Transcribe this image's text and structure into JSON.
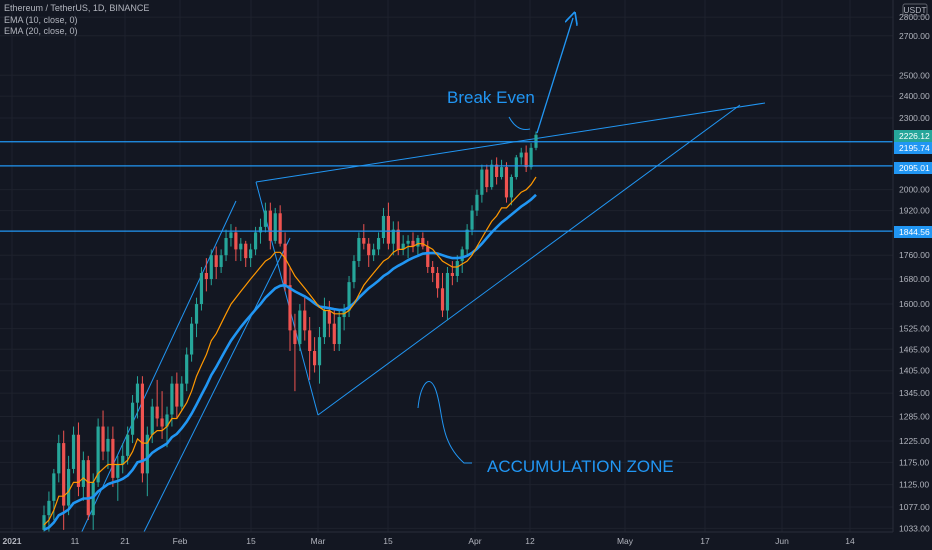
{
  "header": {
    "symbol_line": "Ethereum / TetherUS, 1D, BINANCE",
    "indicators": [
      "EMA (10, close, 0)",
      "EMA (20, close, 0)"
    ]
  },
  "price_axis": {
    "currency": "USDT",
    "ticks": [
      "2800.00",
      "2700.00",
      "2500.00",
      "2400.00",
      "2300.00",
      "2000.00",
      "1920.00",
      "1760.00",
      "1680.00",
      "1600.00",
      "1525.00",
      "1465.00",
      "1405.00",
      "1345.00",
      "1285.00",
      "1225.00",
      "1175.00",
      "1125.00",
      "1077.00",
      "1033.00"
    ],
    "price_labels": [
      {
        "text": "2226.12",
        "color": "#26a69a"
      },
      {
        "text": "2195.74",
        "color": "#2196f3"
      },
      {
        "text": "2095.01",
        "color": "#2196f3"
      },
      {
        "text": "1844.56",
        "color": "#2196f3"
      }
    ]
  },
  "time_axis": {
    "ticks": [
      "2021",
      "11",
      "21",
      "Feb",
      "15",
      "Mar",
      "15",
      "Apr",
      "12",
      "May",
      "17",
      "Jun",
      "14"
    ]
  },
  "annotations": {
    "break_even": "Break Even",
    "accumulation": "ACCUMULATION ZONE"
  },
  "colors": {
    "background": "#131722",
    "up": "#26a69a",
    "down": "#ef5350",
    "ema10": "#ff9800",
    "ema20": "#2196f3",
    "drawing": "#2196f3",
    "grid": "#1e222d"
  },
  "chart_data": {
    "type": "candlestick",
    "symbol": "Ethereum / TetherUS",
    "interval": "1D",
    "exchange": "BINANCE",
    "x_start": "2021-01-01",
    "ohlc": [
      [
        1030,
        1080,
        990,
        1060
      ],
      [
        1060,
        1110,
        1020,
        1090
      ],
      [
        1090,
        1160,
        1050,
        1150
      ],
      [
        1150,
        1240,
        1130,
        1220
      ],
      [
        1220,
        1250,
        1030,
        1080
      ],
      [
        1080,
        1190,
        1060,
        1160
      ],
      [
        1160,
        1260,
        1150,
        1240
      ],
      [
        1240,
        1270,
        1100,
        1120
      ],
      [
        1120,
        1200,
        1090,
        1180
      ],
      [
        1180,
        1190,
        1050,
        1060
      ],
      [
        1060,
        1150,
        1030,
        1130
      ],
      [
        1130,
        1280,
        1120,
        1260
      ],
      [
        1260,
        1300,
        1180,
        1200
      ],
      [
        1200,
        1260,
        1160,
        1230
      ],
      [
        1230,
        1260,
        1120,
        1140
      ],
      [
        1140,
        1190,
        1090,
        1170
      ],
      [
        1170,
        1220,
        1150,
        1190
      ],
      [
        1190,
        1260,
        1170,
        1240
      ],
      [
        1240,
        1340,
        1220,
        1320
      ],
      [
        1320,
        1390,
        1280,
        1370
      ],
      [
        1370,
        1390,
        1130,
        1150
      ],
      [
        1150,
        1260,
        1100,
        1240
      ],
      [
        1240,
        1330,
        1220,
        1310
      ],
      [
        1310,
        1380,
        1260,
        1280
      ],
      [
        1280,
        1350,
        1230,
        1260
      ],
      [
        1260,
        1310,
        1210,
        1290
      ],
      [
        1290,
        1390,
        1260,
        1370
      ],
      [
        1370,
        1400,
        1280,
        1310
      ],
      [
        1310,
        1390,
        1300,
        1370
      ],
      [
        1370,
        1470,
        1350,
        1450
      ],
      [
        1450,
        1560,
        1430,
        1540
      ],
      [
        1540,
        1620,
        1500,
        1600
      ],
      [
        1600,
        1720,
        1580,
        1700
      ],
      [
        1700,
        1750,
        1640,
        1680
      ],
      [
        1680,
        1780,
        1660,
        1760
      ],
      [
        1760,
        1790,
        1680,
        1720
      ],
      [
        1720,
        1780,
        1700,
        1760
      ],
      [
        1760,
        1850,
        1740,
        1820
      ],
      [
        1820,
        1870,
        1790,
        1840
      ],
      [
        1840,
        1860,
        1740,
        1780
      ],
      [
        1780,
        1820,
        1740,
        1800
      ],
      [
        1800,
        1810,
        1720,
        1750
      ],
      [
        1750,
        1800,
        1720,
        1780
      ],
      [
        1780,
        1860,
        1760,
        1840
      ],
      [
        1840,
        1890,
        1800,
        1860
      ],
      [
        1860,
        1950,
        1840,
        1920
      ],
      [
        1920,
        1950,
        1780,
        1810
      ],
      [
        1810,
        1930,
        1800,
        1910
      ],
      [
        1910,
        1940,
        1790,
        1800
      ],
      [
        1800,
        1840,
        1640,
        1660
      ],
      [
        1660,
        1720,
        1460,
        1520
      ],
      [
        1520,
        1570,
        1350,
        1480
      ],
      [
        1480,
        1600,
        1460,
        1580
      ],
      [
        1580,
        1620,
        1490,
        1520
      ],
      [
        1520,
        1560,
        1380,
        1460
      ],
      [
        1460,
        1500,
        1400,
        1420
      ],
      [
        1420,
        1530,
        1370,
        1500
      ],
      [
        1500,
        1620,
        1480,
        1580
      ],
      [
        1580,
        1610,
        1500,
        1540
      ],
      [
        1540,
        1580,
        1460,
        1480
      ],
      [
        1480,
        1580,
        1460,
        1560
      ],
      [
        1560,
        1600,
        1520,
        1580
      ],
      [
        1580,
        1690,
        1560,
        1670
      ],
      [
        1670,
        1760,
        1650,
        1740
      ],
      [
        1740,
        1840,
        1720,
        1820
      ],
      [
        1820,
        1870,
        1780,
        1800
      ],
      [
        1800,
        1820,
        1720,
        1760
      ],
      [
        1760,
        1800,
        1740,
        1780
      ],
      [
        1780,
        1840,
        1760,
        1820
      ],
      [
        1820,
        1930,
        1800,
        1900
      ],
      [
        1900,
        1950,
        1780,
        1800
      ],
      [
        1800,
        1880,
        1760,
        1850
      ],
      [
        1850,
        1880,
        1760,
        1780
      ],
      [
        1780,
        1830,
        1760,
        1800
      ],
      [
        1800,
        1830,
        1750,
        1810
      ],
      [
        1810,
        1840,
        1770,
        1790
      ],
      [
        1790,
        1830,
        1760,
        1820
      ],
      [
        1820,
        1840,
        1780,
        1790
      ],
      [
        1790,
        1810,
        1700,
        1720
      ],
      [
        1720,
        1740,
        1670,
        1700
      ],
      [
        1700,
        1720,
        1620,
        1650
      ],
      [
        1650,
        1700,
        1560,
        1580
      ],
      [
        1580,
        1720,
        1550,
        1700
      ],
      [
        1700,
        1740,
        1660,
        1690
      ],
      [
        1690,
        1760,
        1670,
        1740
      ],
      [
        1740,
        1790,
        1700,
        1780
      ],
      [
        1780,
        1870,
        1760,
        1850
      ],
      [
        1850,
        1940,
        1830,
        1920
      ],
      [
        1920,
        2000,
        1900,
        1980
      ],
      [
        1980,
        2100,
        1950,
        2080
      ],
      [
        2080,
        2100,
        1990,
        2010
      ],
      [
        2010,
        2120,
        2000,
        2100
      ],
      [
        2100,
        2130,
        2020,
        2050
      ],
      [
        2050,
        2120,
        2040,
        2090
      ],
      [
        2090,
        2110,
        1950,
        1970
      ],
      [
        1970,
        2060,
        1940,
        2050
      ],
      [
        2050,
        2140,
        2040,
        2130
      ],
      [
        2130,
        2170,
        2100,
        2150
      ],
      [
        2150,
        2180,
        2070,
        2090
      ],
      [
        2090,
        2190,
        2080,
        2170
      ],
      [
        2170,
        2240,
        2160,
        2226.12
      ]
    ],
    "ema10": [
      1040,
      1050,
      1070,
      1100,
      1100,
      1110,
      1130,
      1130,
      1140,
      1130,
      1130,
      1150,
      1160,
      1170,
      1170,
      1170,
      1170,
      1180,
      1200,
      1230,
      1220,
      1220,
      1240,
      1250,
      1250,
      1260,
      1280,
      1280,
      1300,
      1320,
      1350,
      1390,
      1420,
      1450,
      1490,
      1510,
      1540,
      1570,
      1600,
      1620,
      1640,
      1660,
      1680,
      1700,
      1720,
      1740,
      1750,
      1770,
      1770,
      1750,
      1720,
      1690,
      1670,
      1650,
      1630,
      1610,
      1590,
      1580,
      1580,
      1570,
      1570,
      1570,
      1580,
      1600,
      1630,
      1660,
      1680,
      1700,
      1720,
      1740,
      1750,
      1770,
      1780,
      1780,
      1790,
      1790,
      1800,
      1800,
      1790,
      1780,
      1760,
      1740,
      1730,
      1720,
      1720,
      1730,
      1740,
      1760,
      1790,
      1820,
      1850,
      1880,
      1900,
      1930,
      1930,
      1950,
      1970,
      1990,
      2000,
      2020,
      2050
    ],
    "ema20": [
      1030,
      1035,
      1045,
      1060,
      1065,
      1072,
      1085,
      1090,
      1095,
      1095,
      1098,
      1110,
      1118,
      1126,
      1130,
      1133,
      1138,
      1145,
      1158,
      1175,
      1178,
      1184,
      1197,
      1205,
      1212,
      1219,
      1234,
      1242,
      1256,
      1272,
      1292,
      1315,
      1340,
      1365,
      1393,
      1415,
      1440,
      1465,
      1490,
      1510,
      1530,
      1548,
      1565,
      1583,
      1600,
      1620,
      1635,
      1650,
      1658,
      1660,
      1650,
      1640,
      1632,
      1624,
      1614,
      1602,
      1592,
      1590,
      1587,
      1584,
      1582,
      1582,
      1590,
      1603,
      1620,
      1635,
      1650,
      1662,
      1675,
      1690,
      1700,
      1714,
      1724,
      1733,
      1743,
      1751,
      1758,
      1765,
      1767,
      1768,
      1766,
      1760,
      1754,
      1750,
      1750,
      1752,
      1758,
      1768,
      1782,
      1800,
      1820,
      1840,
      1858,
      1876,
      1890,
      1905,
      1920,
      1935,
      1948,
      1962,
      1980
    ],
    "horizontal_levels": [
      2195.74,
      2095.01,
      1844.56
    ],
    "last_price": 2226.12,
    "y_scale": "log",
    "ylim": [
      1025,
      2830
    ]
  }
}
